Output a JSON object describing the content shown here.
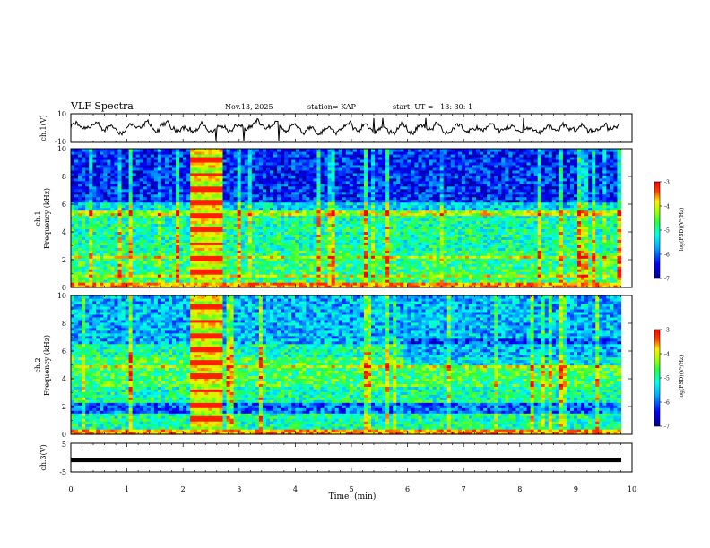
{
  "chart_data": [
    {
      "type": "line",
      "panel": "ch1-waveform",
      "title": "VLF Spectra",
      "date": "Nov.13, 2025",
      "station": "station= KAP",
      "start": "start  UT =   13: 30: 1",
      "ylabel": "ch.1(V)",
      "ylim": [
        -10,
        10
      ],
      "yticks": [
        "10",
        "-10"
      ],
      "xlim": [
        0,
        10
      ],
      "description_hint": "noisy waveform fluctuating roughly between -5 and 5"
    },
    {
      "type": "heatmap",
      "panel": "ch1-spectrogram",
      "ylabel": "ch.1\nFrequency (kHz)",
      "ylabel_line1": "ch.1",
      "ylabel_line2": "Frequency (kHz)",
      "ylim": [
        0,
        10
      ],
      "yticks": [
        "0",
        "2",
        "4",
        "6",
        "8",
        "10"
      ],
      "xlim": [
        0,
        9.8
      ],
      "burst_interval_min": [
        2.15,
        2.7
      ],
      "colorbar": {
        "label": "log(PSD)(V²/Hz)",
        "range": [
          -7,
          -3
        ],
        "ticks": [
          "-3",
          "-4",
          "-5",
          "-6",
          "-7"
        ]
      }
    },
    {
      "type": "heatmap",
      "panel": "ch2-spectrogram",
      "ylabel_line1": "ch.2",
      "ylabel_line2": "Frequency (kHz)",
      "ylim": [
        0,
        10
      ],
      "yticks": [
        "0",
        "2",
        "4",
        "6",
        "8",
        "10"
      ],
      "xlim": [
        0,
        9.8
      ],
      "burst_interval_min": [
        2.15,
        2.7
      ],
      "colorbar": {
        "label": "log(PSD)(V²/Hz)",
        "range": [
          -7,
          -3
        ],
        "ticks": [
          "-3",
          "-4",
          "-5",
          "-6",
          "-7"
        ]
      }
    },
    {
      "type": "line",
      "panel": "ch3-signal",
      "ylabel": "ch.3(V)",
      "ylim": [
        -5,
        5
      ],
      "yticks": [
        "5",
        "-5"
      ],
      "xlabel": "Time  (min)",
      "xlim": [
        0,
        10
      ],
      "xticks": [
        "0",
        "1",
        "2",
        "3",
        "4",
        "5",
        "6",
        "7",
        "8",
        "9",
        "10"
      ],
      "level": -0.8
    }
  ],
  "colors": {
    "scale": [
      "#000080",
      "#0000ff",
      "#0080ff",
      "#00ffff",
      "#00ff40",
      "#80ff00",
      "#ffff00",
      "#ff8000",
      "#ff0000",
      "#800000"
    ]
  }
}
